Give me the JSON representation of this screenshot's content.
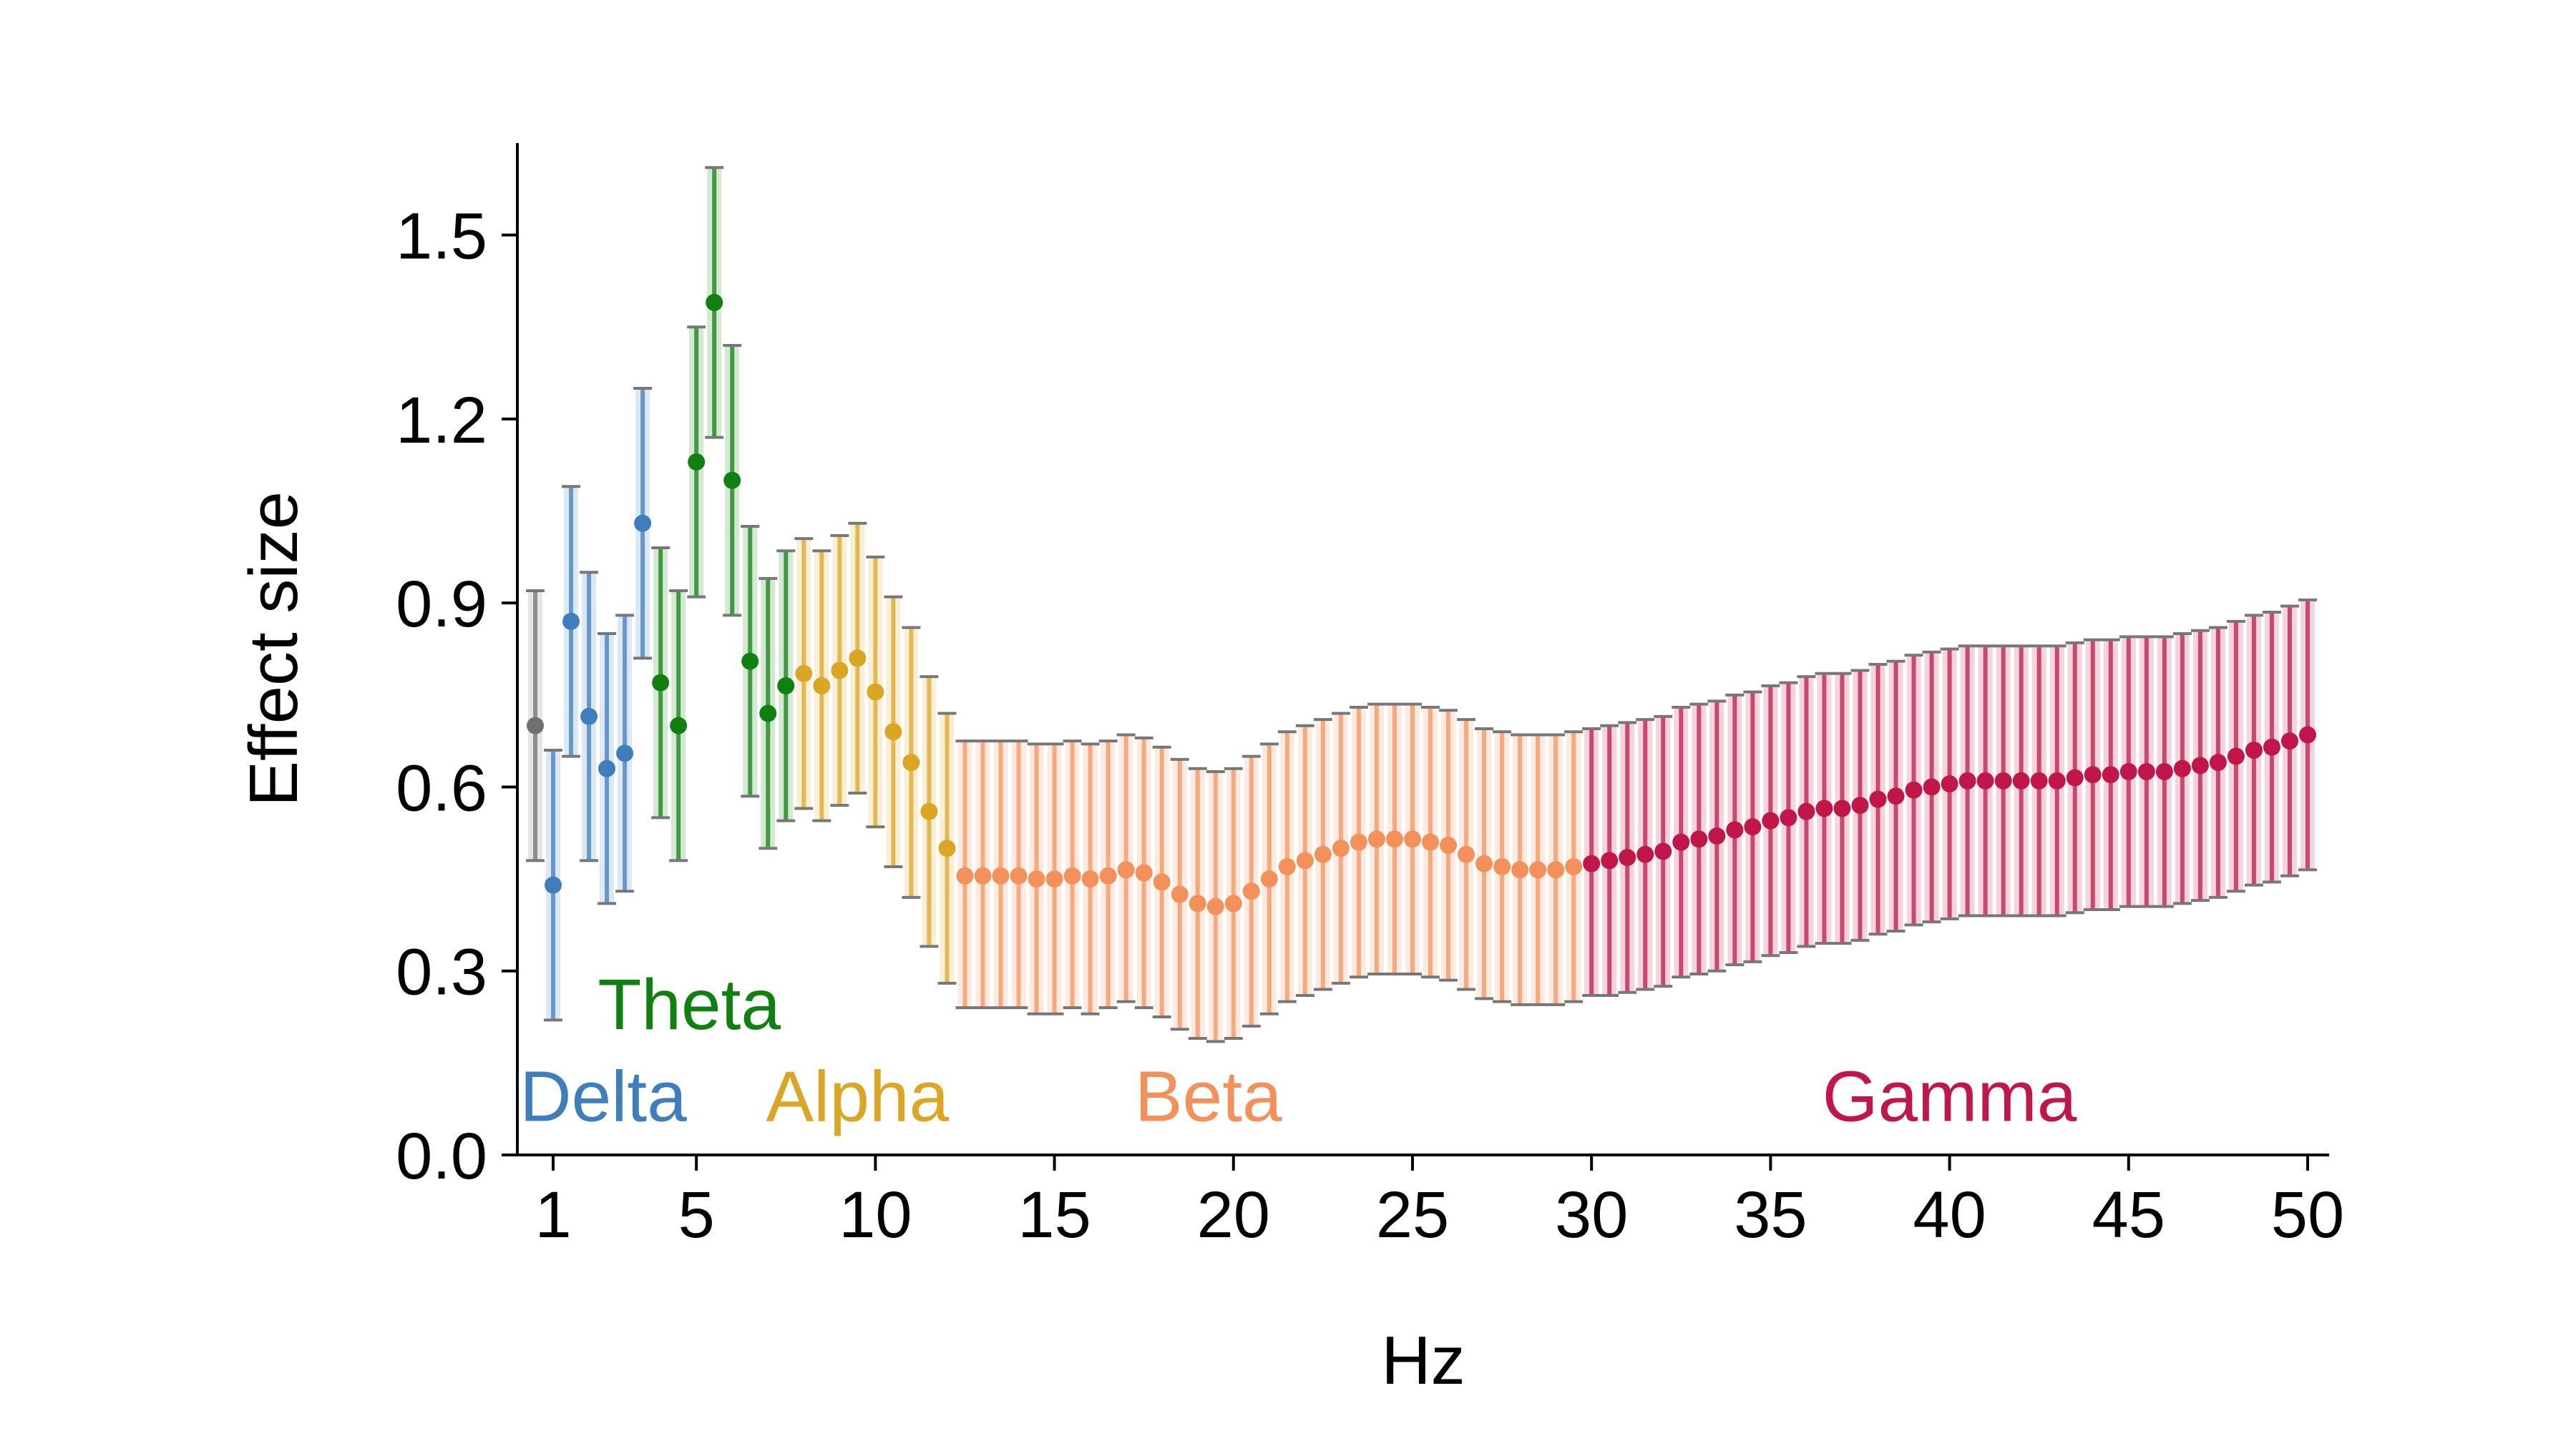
{
  "chart_data": {
    "type": "scatter",
    "title": "",
    "xlabel": "Hz",
    "ylabel": "Effect size",
    "xlim": [
      0.0,
      50.6
    ],
    "ylim": [
      0.0,
      1.65
    ],
    "xticks": [
      1,
      5,
      10,
      15,
      20,
      25,
      30,
      35,
      40,
      45,
      50
    ],
    "xtick_labels": [
      "1",
      "5",
      "10",
      "15",
      "20",
      "25",
      "30",
      "35",
      "40",
      "45",
      "50"
    ],
    "yticks": [
      0.0,
      0.3,
      0.6,
      0.9,
      1.2,
      1.5
    ],
    "ytick_labels": [
      "0.0",
      "0.3",
      "0.6",
      "0.9",
      "1.2",
      "1.5"
    ],
    "grid": false,
    "error_bars": true,
    "bands": [
      {
        "name": "Delta",
        "color": "#3f7ebc",
        "label_x": 2.4,
        "label_y": 0.095
      },
      {
        "name": "Theta",
        "color": "#108010",
        "label_x": 4.8,
        "label_y": 0.245
      },
      {
        "name": "Alpha",
        "color": "#dba623",
        "label_x": 9.5,
        "label_y": 0.095
      },
      {
        "name": "Beta",
        "color": "#f4915a",
        "label_x": 19.3,
        "label_y": 0.095
      },
      {
        "name": "Gamma",
        "color": "#c0164a",
        "label_x": 40.0,
        "label_y": 0.095
      }
    ],
    "series": [
      {
        "name": "Delta",
        "color": "#3f7ebc",
        "x": [
          1.0,
          1.5,
          2.0,
          2.5,
          3.0,
          3.5
        ],
        "y": [
          0.44,
          0.87,
          0.715,
          0.63,
          0.655,
          1.03
        ],
        "y_low": [
          0.22,
          0.65,
          0.48,
          0.41,
          0.43,
          0.81
        ],
        "y_high": [
          0.66,
          1.09,
          0.95,
          0.85,
          0.88,
          1.25
        ]
      },
      {
        "name": "Theta",
        "color": "#108010",
        "x": [
          4.0,
          4.5,
          5.0,
          5.5,
          6.0,
          6.5,
          7.0,
          7.5
        ],
        "y": [
          0.77,
          0.7,
          1.13,
          1.39,
          1.1,
          0.805,
          0.72,
          0.765
        ],
        "y_low": [
          0.55,
          0.48,
          0.91,
          1.17,
          0.88,
          0.585,
          0.5,
          0.545
        ],
        "y_high": [
          0.99,
          0.92,
          1.35,
          1.61,
          1.32,
          1.025,
          0.94,
          0.985
        ]
      },
      {
        "name": "Alpha",
        "color": "#dba623",
        "x": [
          8.0,
          8.5,
          9.0,
          9.5,
          10.0,
          10.5,
          11.0,
          11.5,
          12.0
        ],
        "y": [
          0.785,
          0.765,
          0.79,
          0.81,
          0.755,
          0.69,
          0.64,
          0.56,
          0.5
        ],
        "y_low": [
          0.565,
          0.545,
          0.57,
          0.59,
          0.535,
          0.47,
          0.42,
          0.34,
          0.28
        ],
        "y_high": [
          1.005,
          0.985,
          1.01,
          1.03,
          0.975,
          0.91,
          0.86,
          0.78,
          0.72
        ]
      },
      {
        "name": "Beta",
        "color": "#f4915a",
        "x": [
          12.5,
          13.0,
          13.5,
          14.0,
          14.5,
          15.0,
          15.5,
          16.0,
          16.5,
          17.0,
          17.5,
          18.0,
          18.5,
          19.0,
          19.5,
          20.0,
          20.5,
          21.0,
          21.5,
          22.0,
          22.5,
          23.0,
          23.5,
          24.0,
          24.5,
          25.0,
          25.5,
          26.0,
          26.5,
          27.0,
          27.5,
          28.0,
          28.5,
          29.0,
          29.5
        ],
        "y": [
          0.455,
          0.455,
          0.455,
          0.455,
          0.45,
          0.45,
          0.455,
          0.45,
          0.455,
          0.465,
          0.46,
          0.445,
          0.425,
          0.41,
          0.405,
          0.41,
          0.43,
          0.45,
          0.47,
          0.48,
          0.49,
          0.5,
          0.51,
          0.515,
          0.515,
          0.515,
          0.51,
          0.505,
          0.49,
          0.475,
          0.47,
          0.465,
          0.465,
          0.465,
          0.47
        ],
        "y_low": [
          0.24,
          0.24,
          0.24,
          0.24,
          0.23,
          0.23,
          0.24,
          0.23,
          0.24,
          0.25,
          0.24,
          0.225,
          0.205,
          0.19,
          0.185,
          0.19,
          0.21,
          0.23,
          0.25,
          0.26,
          0.27,
          0.28,
          0.29,
          0.295,
          0.295,
          0.295,
          0.29,
          0.285,
          0.27,
          0.255,
          0.25,
          0.245,
          0.245,
          0.245,
          0.25
        ],
        "y_high": [
          0.675,
          0.675,
          0.675,
          0.675,
          0.67,
          0.67,
          0.675,
          0.67,
          0.675,
          0.685,
          0.68,
          0.665,
          0.645,
          0.63,
          0.625,
          0.63,
          0.65,
          0.67,
          0.69,
          0.7,
          0.71,
          0.72,
          0.73,
          0.735,
          0.735,
          0.735,
          0.73,
          0.725,
          0.71,
          0.695,
          0.69,
          0.685,
          0.685,
          0.685,
          0.69
        ]
      },
      {
        "name": "Gamma",
        "color": "#c0164a",
        "x": [
          30.0,
          30.5,
          31.0,
          31.5,
          32.0,
          32.5,
          33.0,
          33.5,
          34.0,
          34.5,
          35.0,
          35.5,
          36.0,
          36.5,
          37.0,
          37.5,
          38.0,
          38.5,
          39.0,
          39.5,
          40.0,
          40.5,
          41.0,
          41.5,
          42.0,
          42.5,
          43.0,
          43.5,
          44.0,
          44.5,
          45.0,
          45.5,
          46.0,
          46.5,
          47.0,
          47.5,
          48.0,
          48.5,
          49.0,
          49.5,
          50.0
        ],
        "y": [
          0.475,
          0.48,
          0.485,
          0.49,
          0.495,
          0.51,
          0.515,
          0.52,
          0.53,
          0.535,
          0.545,
          0.55,
          0.56,
          0.565,
          0.565,
          0.57,
          0.58,
          0.585,
          0.595,
          0.6,
          0.605,
          0.61,
          0.61,
          0.61,
          0.61,
          0.61,
          0.61,
          0.615,
          0.62,
          0.62,
          0.625,
          0.625,
          0.625,
          0.63,
          0.635,
          0.64,
          0.65,
          0.66,
          0.665,
          0.675,
          0.685
        ],
        "y_low": [
          0.26,
          0.26,
          0.265,
          0.27,
          0.275,
          0.29,
          0.295,
          0.3,
          0.31,
          0.315,
          0.325,
          0.33,
          0.34,
          0.345,
          0.345,
          0.35,
          0.36,
          0.365,
          0.375,
          0.38,
          0.385,
          0.39,
          0.39,
          0.39,
          0.39,
          0.39,
          0.39,
          0.395,
          0.4,
          0.4,
          0.405,
          0.405,
          0.405,
          0.41,
          0.415,
          0.42,
          0.43,
          0.44,
          0.445,
          0.455,
          0.465
        ],
        "y_high": [
          0.695,
          0.7,
          0.705,
          0.71,
          0.715,
          0.73,
          0.735,
          0.74,
          0.75,
          0.755,
          0.765,
          0.77,
          0.78,
          0.785,
          0.785,
          0.79,
          0.8,
          0.805,
          0.815,
          0.82,
          0.825,
          0.83,
          0.83,
          0.83,
          0.83,
          0.83,
          0.83,
          0.835,
          0.84,
          0.84,
          0.845,
          0.845,
          0.845,
          0.85,
          0.855,
          0.86,
          0.87,
          0.88,
          0.885,
          0.895,
          0.905
        ]
      },
      {
        "name": "",
        "color": "#707070",
        "x": [
          0.5
        ],
        "y": [
          0.7
        ],
        "y_low": [
          0.48
        ],
        "y_high": [
          0.92
        ]
      }
    ]
  }
}
